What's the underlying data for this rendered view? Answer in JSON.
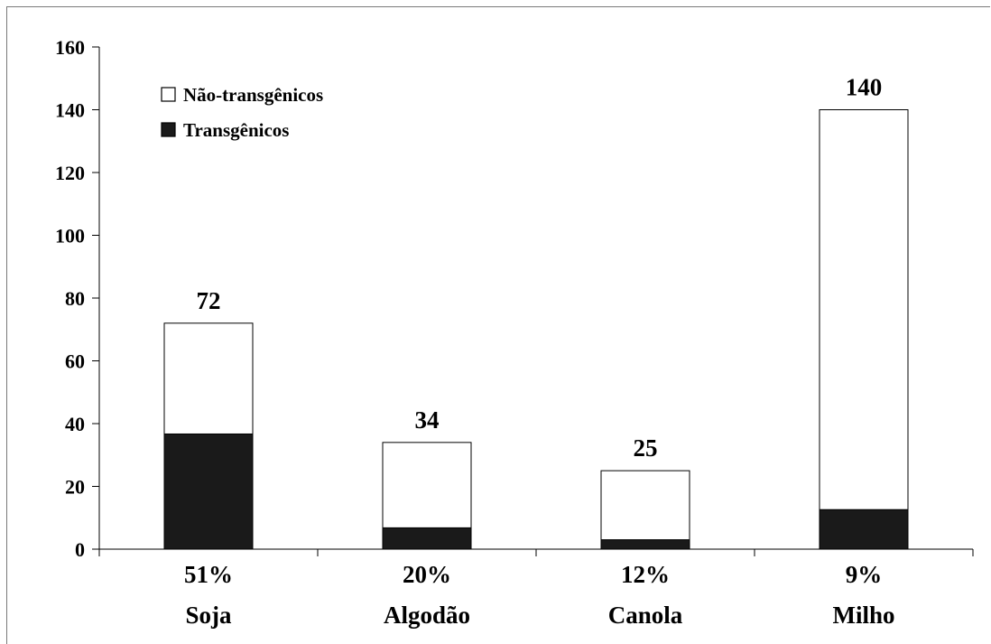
{
  "chart_data": {
    "type": "bar",
    "stacked": true,
    "categories": [
      "Soja",
      "Algodão",
      "Canola",
      "Milho"
    ],
    "percent_labels": [
      "51%",
      "20%",
      "12%",
      "9%"
    ],
    "series": [
      {
        "name": "Transgênicos",
        "values": [
          36.7,
          6.8,
          3.0,
          12.6
        ],
        "color": "#1a1a1a"
      },
      {
        "name": "Não-transgênicos",
        "values": [
          35.3,
          27.2,
          22.0,
          127.4
        ],
        "color": "#ffffff"
      }
    ],
    "totals": [
      72,
      34,
      25,
      140
    ],
    "ylim": [
      0,
      160
    ],
    "yticks": [
      0,
      20,
      40,
      60,
      80,
      100,
      120,
      140,
      160
    ],
    "legend": {
      "position": "top-left",
      "entries": [
        "Não-transgênicos",
        "Transgênicos"
      ]
    },
    "grid": false,
    "title": "",
    "xlabel": "",
    "ylabel": ""
  }
}
